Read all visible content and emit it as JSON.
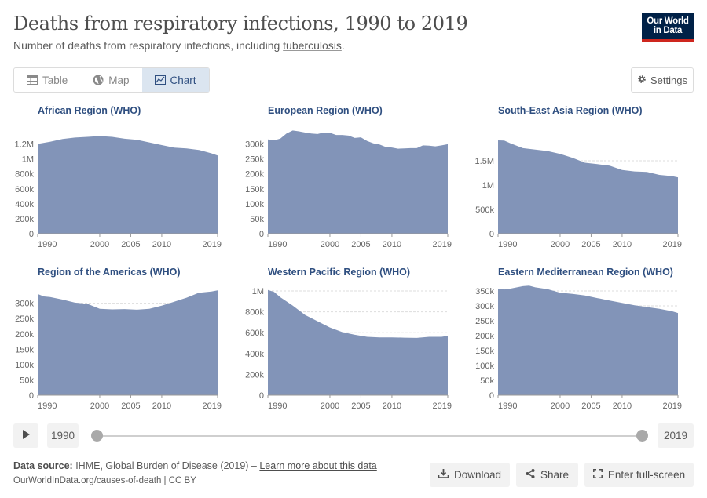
{
  "header": {
    "title": "Deaths from respiratory infections, 1990 to 2019",
    "subtitle_prefix": "Number of deaths from respiratory infections, including ",
    "subtitle_link": "tuberculosis",
    "subtitle_suffix": ".",
    "logo_line1": "Our World",
    "logo_line2": "in Data"
  },
  "tabs": [
    {
      "label": "Table",
      "icon": "table-icon",
      "active": false
    },
    {
      "label": "Map",
      "icon": "globe-icon",
      "active": false
    },
    {
      "label": "Chart",
      "icon": "chart-icon",
      "active": true
    }
  ],
  "settings_label": "Settings",
  "colors": {
    "area": "#8294b8",
    "text_title": "#2f4f80",
    "grid": "#dddddd",
    "axis": "#666666"
  },
  "chart_data": [
    {
      "type": "area",
      "title": "African Region (WHO)",
      "x": [
        1990,
        1992,
        1994,
        1996,
        1998,
        2000,
        2002,
        2004,
        2006,
        2008,
        2010,
        2012,
        2014,
        2016,
        2018,
        2019
      ],
      "values": [
        1200000,
        1230000,
        1265000,
        1285000,
        1295000,
        1305000,
        1295000,
        1270000,
        1255000,
        1220000,
        1185000,
        1150000,
        1140000,
        1120000,
        1075000,
        1045000
      ],
      "yticks": [
        0,
        200000,
        400000,
        600000,
        800000,
        1000000,
        1200000
      ],
      "ytick_labels": [
        "0",
        "200k",
        "400k",
        "600k",
        "800k",
        "1M",
        "1.2M"
      ],
      "ylim": [
        0,
        1300000
      ],
      "xticks": [
        1990,
        2000,
        2005,
        2010,
        2019
      ]
    },
    {
      "type": "area",
      "title": "European Region (WHO)",
      "x": [
        1990,
        1991,
        1992,
        1993,
        1994,
        1995,
        1996,
        1997,
        1998,
        1999,
        2000,
        2001,
        2002,
        2003,
        2004,
        2005,
        2006,
        2007,
        2008,
        2009,
        2010,
        2011,
        2012,
        2013,
        2014,
        2015,
        2016,
        2017,
        2018,
        2019
      ],
      "values": [
        315000,
        312000,
        318000,
        335000,
        345000,
        342000,
        338000,
        335000,
        333000,
        338000,
        337000,
        330000,
        330000,
        328000,
        320000,
        322000,
        310000,
        302000,
        298000,
        290000,
        288000,
        284000,
        285000,
        286000,
        286000,
        295000,
        294000,
        292000,
        295000,
        299000
      ],
      "yticks": [
        0,
        50000,
        100000,
        150000,
        200000,
        250000,
        300000
      ],
      "ytick_labels": [
        "0",
        "50k",
        "100k",
        "150k",
        "200k",
        "250k",
        "300k"
      ],
      "ylim": [
        0,
        325000
      ],
      "xticks": [
        1990,
        2000,
        2005,
        2010,
        2019
      ]
    },
    {
      "type": "area",
      "title": "South-East Asia Region (WHO)",
      "x": [
        1990,
        1991,
        1992,
        1994,
        1996,
        1998,
        2000,
        2002,
        2004,
        2006,
        2008,
        2010,
        2012,
        2014,
        2016,
        2018,
        2019
      ],
      "values": [
        1920000,
        1915000,
        1860000,
        1760000,
        1730000,
        1700000,
        1640000,
        1560000,
        1460000,
        1430000,
        1400000,
        1310000,
        1280000,
        1270000,
        1210000,
        1185000,
        1160000
      ],
      "yticks": [
        0,
        500000,
        1000000,
        1500000
      ],
      "ytick_labels": [
        "0",
        "500k",
        "1M",
        "1.5M"
      ],
      "ylim": [
        0,
        2000000
      ],
      "xticks": [
        1990,
        2000,
        2005,
        2010,
        2019
      ]
    },
    {
      "type": "area",
      "title": "Region of the Americas (WHO)",
      "x": [
        1990,
        1991,
        1992,
        1994,
        1996,
        1998,
        2000,
        2002,
        2004,
        2006,
        2008,
        2010,
        2012,
        2014,
        2016,
        2018,
        2019
      ],
      "values": [
        330000,
        322000,
        320000,
        312000,
        302000,
        298000,
        282000,
        280000,
        281000,
        279000,
        282000,
        292000,
        305000,
        318000,
        334000,
        338000,
        342000
      ],
      "yticks": [
        0,
        50000,
        100000,
        150000,
        200000,
        250000,
        300000
      ],
      "ytick_labels": [
        "0",
        "50k",
        "100k",
        "150k",
        "200k",
        "250k",
        "300k"
      ],
      "ylim": [
        0,
        340000
      ],
      "xticks": [
        1990,
        2000,
        2005,
        2010,
        2019
      ]
    },
    {
      "type": "area",
      "title": "Western Pacific Region (WHO)",
      "x": [
        1990,
        1991,
        1992,
        1994,
        1996,
        1998,
        2000,
        2002,
        2004,
        2006,
        2008,
        2010,
        2012,
        2014,
        2016,
        2018,
        2019
      ],
      "values": [
        1010000,
        990000,
        940000,
        860000,
        770000,
        710000,
        650000,
        605000,
        580000,
        560000,
        555000,
        555000,
        552000,
        550000,
        560000,
        560000,
        570000
      ],
      "yticks": [
        0,
        200000,
        400000,
        600000,
        800000,
        1000000
      ],
      "ytick_labels": [
        "0",
        "200k",
        "400k",
        "600k",
        "800k",
        "1M"
      ],
      "ylim": [
        0,
        1000000
      ],
      "xticks": [
        1990,
        2000,
        2005,
        2010,
        2019
      ]
    },
    {
      "type": "area",
      "title": "Eastern Mediterranean Region (WHO)",
      "x": [
        1990,
        1991,
        1992,
        1994,
        1995,
        1996,
        1998,
        2000,
        2002,
        2004,
        2006,
        2008,
        2010,
        2012,
        2014,
        2016,
        2018,
        2019
      ],
      "values": [
        358000,
        355000,
        358000,
        366000,
        368000,
        362000,
        356000,
        344000,
        340000,
        335000,
        326000,
        318000,
        310000,
        302000,
        296000,
        290000,
        282000,
        276000
      ],
      "yticks": [
        0,
        50000,
        100000,
        150000,
        200000,
        250000,
        300000,
        350000
      ],
      "ytick_labels": [
        "0",
        "50k",
        "100k",
        "150k",
        "200k",
        "250k",
        "300k",
        "350k"
      ],
      "ylim": [
        0,
        350000
      ],
      "xticks": [
        1990,
        2000,
        2005,
        2010,
        2019
      ]
    }
  ],
  "timeline": {
    "start_year": "1990",
    "end_year": "2019"
  },
  "footer": {
    "source_label": "Data source:",
    "source_text": " IHME, Global Burden of Disease (2019) – ",
    "learn_more": "Learn more about this data",
    "origin": "OurWorldInData.org/causes-of-death | CC BY",
    "download": "Download",
    "share": "Share",
    "fullscreen": "Enter full-screen"
  }
}
